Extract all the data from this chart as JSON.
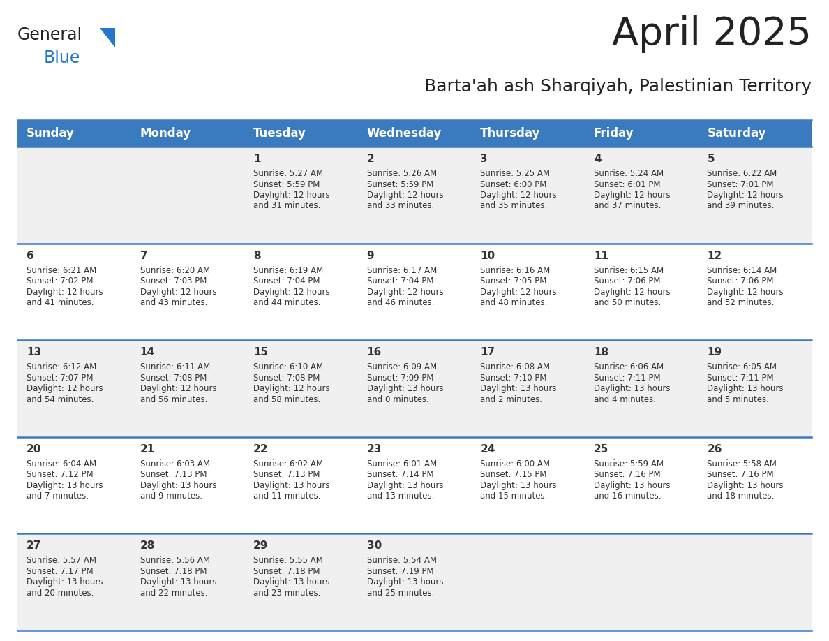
{
  "title": "April 2025",
  "subtitle": "Barta'ah ash Sharqiyah, Palestinian Territory",
  "days_of_week": [
    "Sunday",
    "Monday",
    "Tuesday",
    "Wednesday",
    "Thursday",
    "Friday",
    "Saturday"
  ],
  "header_bg": "#3a7abf",
  "header_text_color": "#ffffff",
  "row_bg_light": "#f0f0f0",
  "row_bg_white": "#ffffff",
  "cell_text_color": "#333333",
  "divider_color": "#3a7abf",
  "calendar_data": [
    [
      {
        "day": null,
        "sunrise": null,
        "sunset": null,
        "daylight": null
      },
      {
        "day": null,
        "sunrise": null,
        "sunset": null,
        "daylight": null
      },
      {
        "day": 1,
        "sunrise": "5:27 AM",
        "sunset": "5:59 PM",
        "daylight": "12 hours and 31 minutes."
      },
      {
        "day": 2,
        "sunrise": "5:26 AM",
        "sunset": "5:59 PM",
        "daylight": "12 hours and 33 minutes."
      },
      {
        "day": 3,
        "sunrise": "5:25 AM",
        "sunset": "6:00 PM",
        "daylight": "12 hours and 35 minutes."
      },
      {
        "day": 4,
        "sunrise": "5:24 AM",
        "sunset": "6:01 PM",
        "daylight": "12 hours and 37 minutes."
      },
      {
        "day": 5,
        "sunrise": "6:22 AM",
        "sunset": "7:01 PM",
        "daylight": "12 hours and 39 minutes."
      }
    ],
    [
      {
        "day": 6,
        "sunrise": "6:21 AM",
        "sunset": "7:02 PM",
        "daylight": "12 hours and 41 minutes."
      },
      {
        "day": 7,
        "sunrise": "6:20 AM",
        "sunset": "7:03 PM",
        "daylight": "12 hours and 43 minutes."
      },
      {
        "day": 8,
        "sunrise": "6:19 AM",
        "sunset": "7:04 PM",
        "daylight": "12 hours and 44 minutes."
      },
      {
        "day": 9,
        "sunrise": "6:17 AM",
        "sunset": "7:04 PM",
        "daylight": "12 hours and 46 minutes."
      },
      {
        "day": 10,
        "sunrise": "6:16 AM",
        "sunset": "7:05 PM",
        "daylight": "12 hours and 48 minutes."
      },
      {
        "day": 11,
        "sunrise": "6:15 AM",
        "sunset": "7:06 PM",
        "daylight": "12 hours and 50 minutes."
      },
      {
        "day": 12,
        "sunrise": "6:14 AM",
        "sunset": "7:06 PM",
        "daylight": "12 hours and 52 minutes."
      }
    ],
    [
      {
        "day": 13,
        "sunrise": "6:12 AM",
        "sunset": "7:07 PM",
        "daylight": "12 hours and 54 minutes."
      },
      {
        "day": 14,
        "sunrise": "6:11 AM",
        "sunset": "7:08 PM",
        "daylight": "12 hours and 56 minutes."
      },
      {
        "day": 15,
        "sunrise": "6:10 AM",
        "sunset": "7:08 PM",
        "daylight": "12 hours and 58 minutes."
      },
      {
        "day": 16,
        "sunrise": "6:09 AM",
        "sunset": "7:09 PM",
        "daylight": "13 hours and 0 minutes."
      },
      {
        "day": 17,
        "sunrise": "6:08 AM",
        "sunset": "7:10 PM",
        "daylight": "13 hours and 2 minutes."
      },
      {
        "day": 18,
        "sunrise": "6:06 AM",
        "sunset": "7:11 PM",
        "daylight": "13 hours and 4 minutes."
      },
      {
        "day": 19,
        "sunrise": "6:05 AM",
        "sunset": "7:11 PM",
        "daylight": "13 hours and 5 minutes."
      }
    ],
    [
      {
        "day": 20,
        "sunrise": "6:04 AM",
        "sunset": "7:12 PM",
        "daylight": "13 hours and 7 minutes."
      },
      {
        "day": 21,
        "sunrise": "6:03 AM",
        "sunset": "7:13 PM",
        "daylight": "13 hours and 9 minutes."
      },
      {
        "day": 22,
        "sunrise": "6:02 AM",
        "sunset": "7:13 PM",
        "daylight": "13 hours and 11 minutes."
      },
      {
        "day": 23,
        "sunrise": "6:01 AM",
        "sunset": "7:14 PM",
        "daylight": "13 hours and 13 minutes."
      },
      {
        "day": 24,
        "sunrise": "6:00 AM",
        "sunset": "7:15 PM",
        "daylight": "13 hours and 15 minutes."
      },
      {
        "day": 25,
        "sunrise": "5:59 AM",
        "sunset": "7:16 PM",
        "daylight": "13 hours and 16 minutes."
      },
      {
        "day": 26,
        "sunrise": "5:58 AM",
        "sunset": "7:16 PM",
        "daylight": "13 hours and 18 minutes."
      }
    ],
    [
      {
        "day": 27,
        "sunrise": "5:57 AM",
        "sunset": "7:17 PM",
        "daylight": "13 hours and 20 minutes."
      },
      {
        "day": 28,
        "sunrise": "5:56 AM",
        "sunset": "7:18 PM",
        "daylight": "13 hours and 22 minutes."
      },
      {
        "day": 29,
        "sunrise": "5:55 AM",
        "sunset": "7:18 PM",
        "daylight": "13 hours and 23 minutes."
      },
      {
        "day": 30,
        "sunrise": "5:54 AM",
        "sunset": "7:19 PM",
        "daylight": "13 hours and 25 minutes."
      },
      {
        "day": null,
        "sunrise": null,
        "sunset": null,
        "daylight": null
      },
      {
        "day": null,
        "sunrise": null,
        "sunset": null,
        "daylight": null
      },
      {
        "day": null,
        "sunrise": null,
        "sunset": null,
        "daylight": null
      }
    ]
  ],
  "logo_general_color": "#222222",
  "logo_blue_color": "#2277cc",
  "title_color": "#222222",
  "subtitle_color": "#222222",
  "title_fontsize": 40,
  "subtitle_fontsize": 18,
  "header_fontsize": 12,
  "day_num_fontsize": 11,
  "cell_fontsize": 8.5
}
